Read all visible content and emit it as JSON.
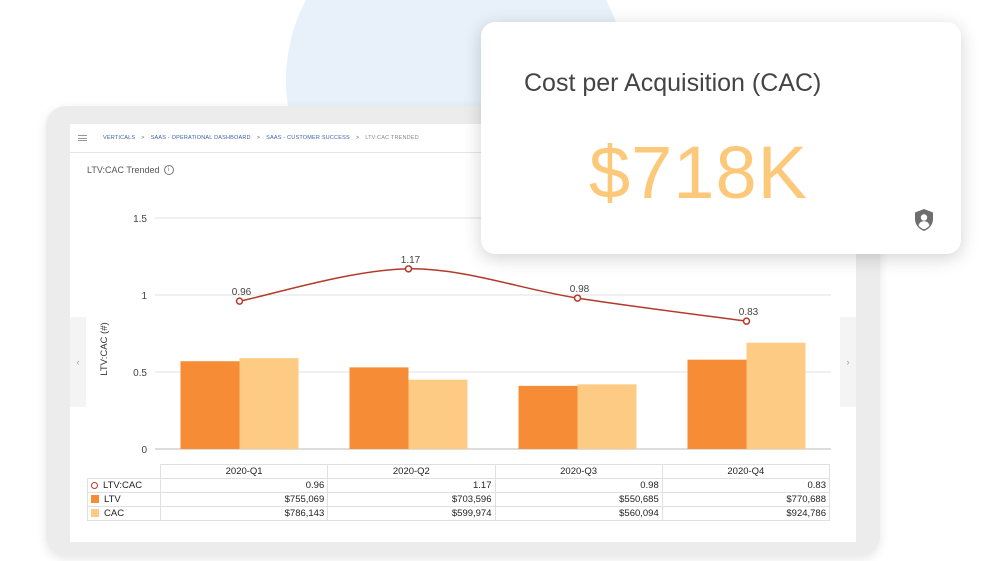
{
  "breadcrumb": {
    "items": [
      "VERTICALS",
      "SAAS - OPERATIONAL DASHBOARD",
      "SAAS - CUSTOMER SUCCESS"
    ],
    "current": "LTV:CAC TRENDED",
    "separator": ">"
  },
  "chart_title": "LTV:CAC Trended",
  "kpi_card": {
    "title": "Cost per Acquisition (CAC)",
    "value": "$718K",
    "icon": "shield-user-icon"
  },
  "nav": {
    "left_arrow": "‹",
    "right_arrow": "›"
  },
  "colors": {
    "line": "#b33a2b",
    "ltv": "#f68d36",
    "cac": "#fdcb84",
    "kpi_value": "#fcc97a",
    "breadcrumb": "#3a63a8"
  },
  "chart_data": {
    "type": "bar",
    "categories": [
      "2020-Q1",
      "2020-Q2",
      "2020-Q3",
      "2020-Q4"
    ],
    "ylabel": "LTV:CAC (#)",
    "ylim": [
      0,
      1.5
    ],
    "yticks": [
      "0",
      "0.5",
      "1",
      "1.5"
    ],
    "grid": true,
    "line_series": {
      "name": "LTV:CAC",
      "values": [
        0.96,
        1.17,
        0.98,
        0.83
      ],
      "labels": [
        "0.96",
        "1.17",
        "0.98",
        "0.83"
      ]
    },
    "series": [
      {
        "name": "LTV",
        "values": [
          0.57,
          0.53,
          0.41,
          0.58
        ]
      },
      {
        "name": "CAC",
        "values": [
          0.59,
          0.45,
          0.42,
          0.69
        ]
      }
    ],
    "table_rows": [
      {
        "name": "LTV:CAC",
        "cells": [
          "0.96",
          "1.17",
          "0.98",
          "0.83"
        ]
      },
      {
        "name": "LTV",
        "cells": [
          "$755,069",
          "$703,596",
          "$550,685",
          "$770,688"
        ]
      },
      {
        "name": "CAC",
        "cells": [
          "$786,143",
          "$599,974",
          "$560,094",
          "$924,786"
        ]
      }
    ]
  }
}
